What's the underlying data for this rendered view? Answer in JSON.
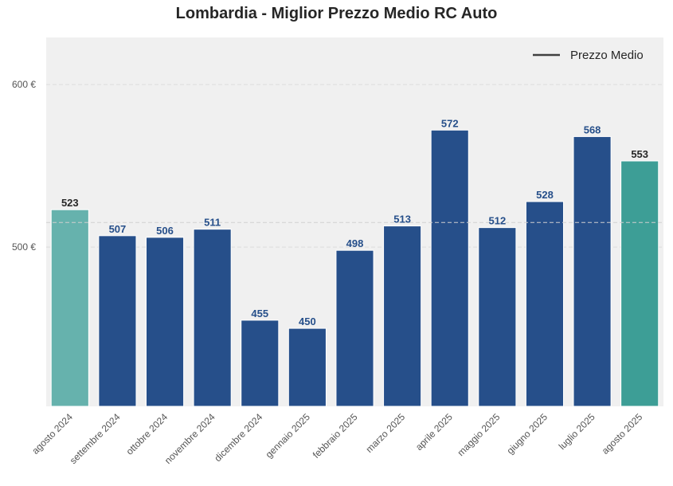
{
  "chart_data": {
    "type": "bar",
    "title": "Lombardia - Miglior Prezzo Medio RC Auto",
    "categories": [
      "agosto 2024",
      "settembre 2024",
      "ottobre 2024",
      "novembre 2024",
      "dicembre 2024",
      "gennaio 2025",
      "febbraio 2025",
      "marzo 2025",
      "aprile 2025",
      "maggio 2025",
      "giugno 2025",
      "luglio 2025",
      "agosto 2025"
    ],
    "values": [
      523,
      507,
      506,
      511,
      455,
      450,
      498,
      513,
      572,
      512,
      528,
      568,
      553
    ],
    "value_labels": [
      "523",
      "507",
      "506",
      "511",
      "455",
      "450",
      "498",
      "513",
      "572",
      "512",
      "528",
      "568",
      "553"
    ],
    "bar_colors": [
      "#66b2ad",
      "#264f8a",
      "#264f8a",
      "#264f8a",
      "#264f8a",
      "#264f8a",
      "#264f8a",
      "#264f8a",
      "#264f8a",
      "#264f8a",
      "#264f8a",
      "#264f8a",
      "#3d9e96"
    ],
    "label_colors": [
      "#262626",
      "#264f8a",
      "#264f8a",
      "#264f8a",
      "#264f8a",
      "#264f8a",
      "#264f8a",
      "#264f8a",
      "#264f8a",
      "#264f8a",
      "#264f8a",
      "#264f8a",
      "#262626"
    ],
    "mean_line": {
      "value": 515.15,
      "label": "Prezzo Medio"
    },
    "yticks": [
      500,
      600
    ],
    "ytick_labels": [
      "500 €",
      "600 €"
    ],
    "ylim": [
      402,
      629
    ],
    "xlabel": "",
    "ylabel": "",
    "grid": true,
    "legend": {
      "position": "top-right",
      "entries": [
        "Prezzo Medio"
      ]
    },
    "colors": {
      "background": "#f0f0f0",
      "grid": "#dcdcdc",
      "text": "#555555",
      "legend_line": "#404040"
    }
  }
}
